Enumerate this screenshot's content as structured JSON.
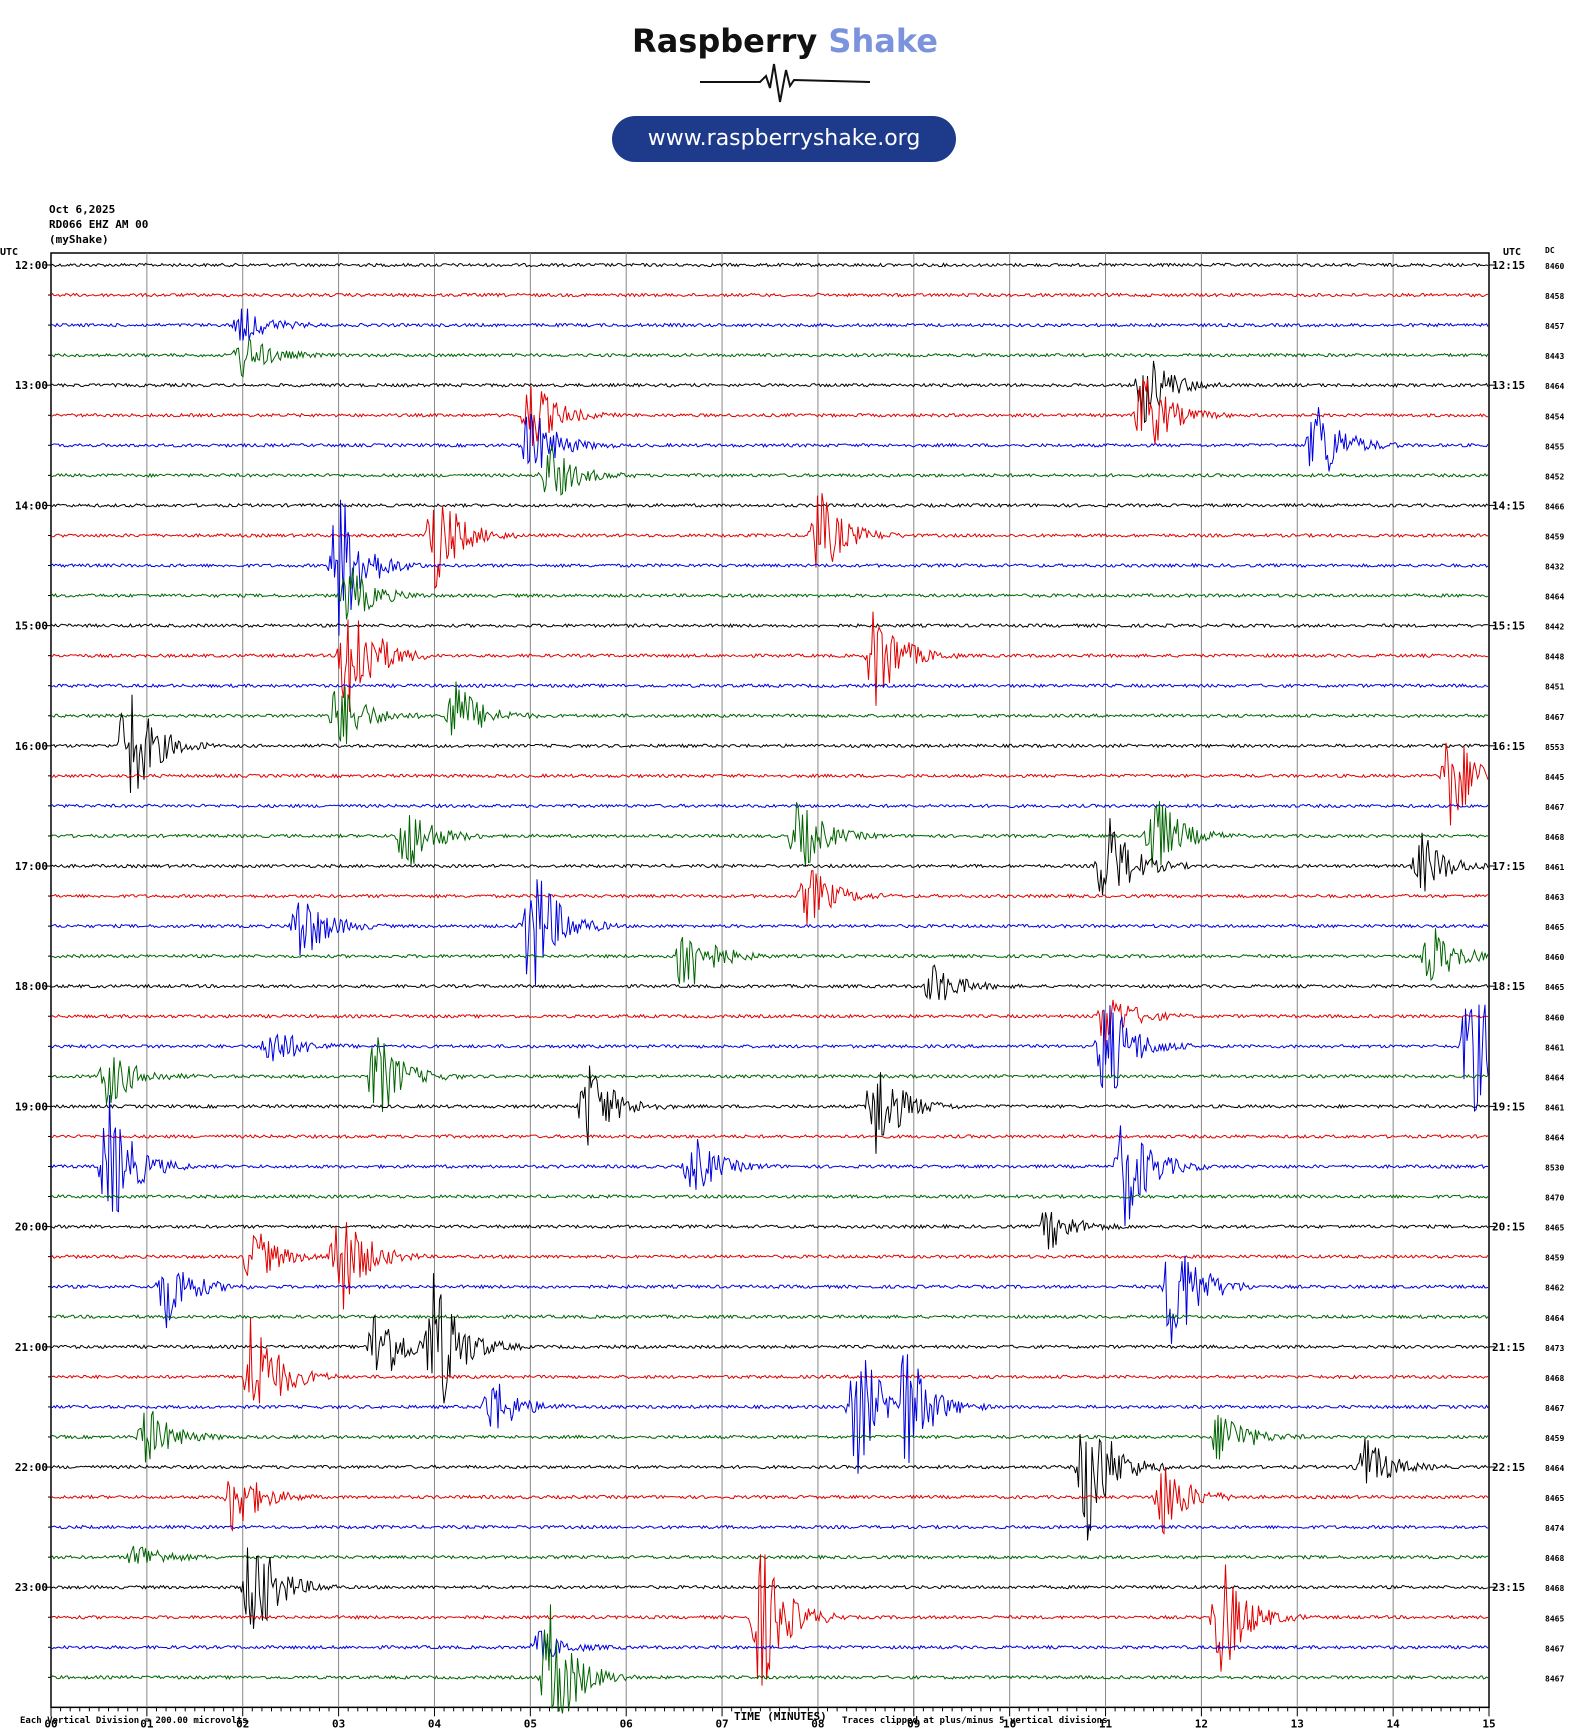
{
  "brand": {
    "name_part1": "Raspberry",
    "name_part2": "Shake",
    "url": "www.raspberryshake.org"
  },
  "header": {
    "date": "Oct 6,2025",
    "station": "RD066 EHZ AM 00",
    "source": "(myShake)"
  },
  "axis": {
    "left_unit": "UTC",
    "right_unit": "UTC",
    "dc_label": "DC",
    "x_title": "TIME (MINUTES)",
    "x_ticks": [
      "00",
      "01",
      "02",
      "03",
      "04",
      "05",
      "06",
      "07",
      "08",
      "09",
      "10",
      "11",
      "12",
      "13",
      "14",
      "15"
    ],
    "left_hour_labels": [
      "12:00",
      "13:00",
      "14:00",
      "15:00",
      "16:00",
      "17:00",
      "18:00",
      "19:00",
      "20:00",
      "21:00",
      "22:00",
      "23:00"
    ],
    "right_hour_labels": [
      "12:15",
      "13:15",
      "14:15",
      "15:15",
      "16:15",
      "17:15",
      "18:15",
      "19:15",
      "20:15",
      "21:15",
      "22:15",
      "23:15"
    ]
  },
  "notes": {
    "division": "Each Vertical Division = 200.00 microvolts",
    "clipping": "Traces clipped at plus/minus 5 vertical divisions"
  },
  "chart_data": {
    "type": "line",
    "title": "",
    "xlabel": "TIME (MINUTES)",
    "ylabel": "UTC",
    "xlim": [
      0,
      15
    ],
    "trace_count": 48,
    "trace_interval_minutes": 15,
    "first_trace_utc": "12:00",
    "trace_colors": [
      "#000000",
      "#e00000",
      "#0000e0",
      "#006400"
    ],
    "grid": true,
    "dc_values": [
      8460,
      8458,
      8457,
      8443,
      8464,
      8454,
      8455,
      8452,
      8466,
      8459,
      8432,
      8464,
      8442,
      8448,
      8451,
      8467,
      8553,
      8445,
      8467,
      8468,
      8461,
      8463,
      8465,
      8460,
      8465,
      8460,
      8461,
      8464,
      8461,
      8464,
      8530,
      8470,
      8465,
      8459,
      8462,
      8464,
      8473,
      8468,
      8467,
      8459,
      8464,
      8465,
      8474,
      8468,
      8468,
      8465,
      8467,
      8467
    ],
    "events": [
      {
        "trace": 2,
        "minute": 2.0,
        "amp": 1.2
      },
      {
        "trace": 3,
        "minute": 2.0,
        "amp": 1.5
      },
      {
        "trace": 5,
        "minute": 5.0,
        "amp": 2.5
      },
      {
        "trace": 6,
        "minute": 5.0,
        "amp": 2.5
      },
      {
        "trace": 7,
        "minute": 5.2,
        "amp": 2.0
      },
      {
        "trace": 4,
        "minute": 11.4,
        "amp": 2.5
      },
      {
        "trace": 5,
        "minute": 11.4,
        "amp": 3.0
      },
      {
        "trace": 6,
        "minute": 13.2,
        "amp": 3.0
      },
      {
        "trace": 9,
        "minute": 8.0,
        "amp": 3.0
      },
      {
        "trace": 9,
        "minute": 4.0,
        "amp": 3.5
      },
      {
        "trace": 10,
        "minute": 3.0,
        "amp": 5.0
      },
      {
        "trace": 11,
        "minute": 3.1,
        "amp": 2.0
      },
      {
        "trace": 13,
        "minute": 3.1,
        "amp": 5.0
      },
      {
        "trace": 13,
        "minute": 8.6,
        "amp": 3.5
      },
      {
        "trace": 15,
        "minute": 3.0,
        "amp": 2.5
      },
      {
        "trace": 15,
        "minute": 4.2,
        "amp": 2.5
      },
      {
        "trace": 16,
        "minute": 0.8,
        "amp": 4.5
      },
      {
        "trace": 17,
        "minute": 14.6,
        "amp": 3.5
      },
      {
        "trace": 19,
        "minute": 3.7,
        "amp": 2.5
      },
      {
        "trace": 19,
        "minute": 7.8,
        "amp": 2.5
      },
      {
        "trace": 19,
        "minute": 11.5,
        "amp": 3.0
      },
      {
        "trace": 20,
        "minute": 11.0,
        "amp": 3.5
      },
      {
        "trace": 20,
        "minute": 14.3,
        "amp": 2.0
      },
      {
        "trace": 21,
        "minute": 7.9,
        "amp": 2.0
      },
      {
        "trace": 22,
        "minute": 5.0,
        "amp": 5.0
      },
      {
        "trace": 22,
        "minute": 2.6,
        "amp": 2.5
      },
      {
        "trace": 23,
        "minute": 6.6,
        "amp": 3.0
      },
      {
        "trace": 23,
        "minute": 14.4,
        "amp": 2.0
      },
      {
        "trace": 24,
        "minute": 9.2,
        "amp": 1.5
      },
      {
        "trace": 25,
        "minute": 11.0,
        "amp": 2.0
      },
      {
        "trace": 26,
        "minute": 2.3,
        "amp": 1.5
      },
      {
        "trace": 26,
        "minute": 11.0,
        "amp": 4.0
      },
      {
        "trace": 26,
        "minute": 14.8,
        "amp": 5.0
      },
      {
        "trace": 27,
        "minute": 3.4,
        "amp": 3.0
      },
      {
        "trace": 27,
        "minute": 0.6,
        "amp": 2.0
      },
      {
        "trace": 28,
        "minute": 5.6,
        "amp": 3.0
      },
      {
        "trace": 28,
        "minute": 8.6,
        "amp": 3.5
      },
      {
        "trace": 30,
        "minute": 0.6,
        "amp": 4.5
      },
      {
        "trace": 30,
        "minute": 6.7,
        "amp": 2.0
      },
      {
        "trace": 30,
        "minute": 11.2,
        "amp": 4.0
      },
      {
        "trace": 32,
        "minute": 10.4,
        "amp": 1.5
      },
      {
        "trace": 33,
        "minute": 2.1,
        "amp": 2.0
      },
      {
        "trace": 33,
        "minute": 3.0,
        "amp": 4.0
      },
      {
        "trace": 34,
        "minute": 1.2,
        "amp": 2.5
      },
      {
        "trace": 34,
        "minute": 11.7,
        "amp": 4.5
      },
      {
        "trace": 36,
        "minute": 3.4,
        "amp": 3.0
      },
      {
        "trace": 36,
        "minute": 4.0,
        "amp": 5.0
      },
      {
        "trace": 37,
        "minute": 2.1,
        "amp": 4.5
      },
      {
        "trace": 38,
        "minute": 4.6,
        "amp": 2.0
      },
      {
        "trace": 38,
        "minute": 8.4,
        "amp": 4.5
      },
      {
        "trace": 38,
        "minute": 8.9,
        "amp": 4.0
      },
      {
        "trace": 39,
        "minute": 1.0,
        "amp": 2.0
      },
      {
        "trace": 39,
        "minute": 12.2,
        "amp": 2.0
      },
      {
        "trace": 40,
        "minute": 10.8,
        "amp": 5.0
      },
      {
        "trace": 40,
        "minute": 13.7,
        "amp": 2.0
      },
      {
        "trace": 41,
        "minute": 1.9,
        "amp": 2.5
      },
      {
        "trace": 41,
        "minute": 11.6,
        "amp": 2.5
      },
      {
        "trace": 43,
        "minute": 0.9,
        "amp": 1.0
      },
      {
        "trace": 44,
        "minute": 2.1,
        "amp": 4.0
      },
      {
        "trace": 45,
        "minute": 7.4,
        "amp": 5.0
      },
      {
        "trace": 45,
        "minute": 12.2,
        "amp": 4.0
      },
      {
        "trace": 46,
        "minute": 5.1,
        "amp": 1.0
      },
      {
        "trace": 47,
        "minute": 5.2,
        "amp": 5.0
      }
    ]
  }
}
